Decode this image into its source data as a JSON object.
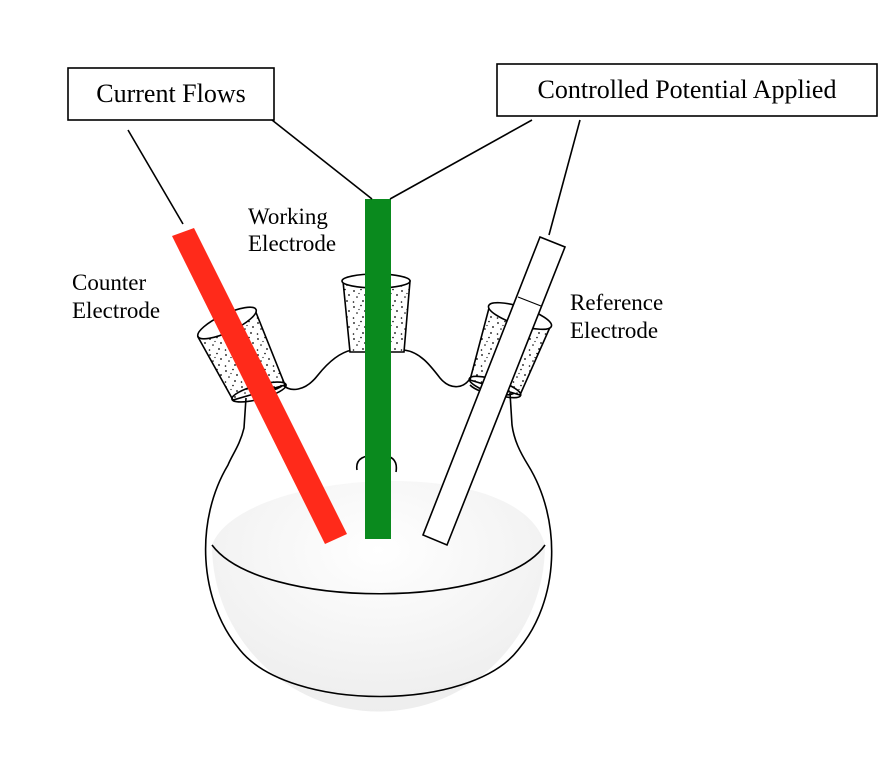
{
  "labels": {
    "current_flows": "Current Flows",
    "controlled_potential": "Controlled Potential Applied",
    "working_electrode": [
      "Working",
      "Electrode"
    ],
    "counter_electrode": [
      "Counter",
      "Electrode"
    ],
    "reference_electrode": [
      "Reference",
      "Electrode"
    ]
  },
  "colors": {
    "counter_electrode": "#ff2a1a",
    "working_electrode": "#0a8a1e",
    "reference_electrode": "#ffffff",
    "solution": "#f2f2f2",
    "outline": "#000000"
  }
}
